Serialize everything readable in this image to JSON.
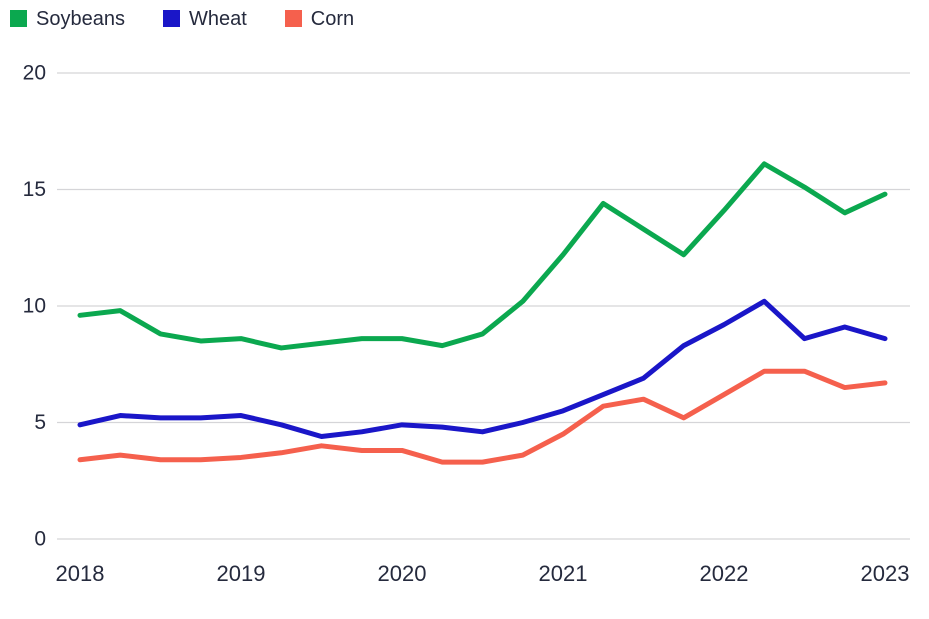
{
  "chart_data": {
    "type": "line",
    "title": "",
    "xlabel": "",
    "ylabel": "",
    "x": [
      2018,
      2018.25,
      2018.5,
      2018.75,
      2019,
      2019.25,
      2019.5,
      2019.75,
      2020,
      2020.25,
      2020.5,
      2020.75,
      2021,
      2021.25,
      2021.5,
      2021.75,
      2022,
      2022.25,
      2022.5,
      2022.75,
      2023
    ],
    "series": [
      {
        "name": "Soybeans",
        "color": "#0ba84f",
        "values": [
          9.6,
          9.8,
          8.8,
          8.5,
          8.6,
          8.2,
          8.4,
          8.6,
          8.6,
          8.3,
          8.8,
          10.2,
          12.2,
          14.4,
          13.3,
          12.2,
          14.1,
          16.1,
          15.1,
          14.0,
          14.8
        ]
      },
      {
        "name": "Wheat",
        "color": "#1a16c8",
        "values": [
          4.9,
          5.3,
          5.2,
          5.2,
          5.3,
          4.9,
          4.4,
          4.6,
          4.9,
          4.8,
          4.6,
          5.0,
          5.5,
          6.2,
          6.9,
          8.3,
          9.2,
          10.2,
          8.6,
          9.1,
          8.6
        ]
      },
      {
        "name": "Corn",
        "color": "#f5604d",
        "values": [
          3.4,
          3.6,
          3.4,
          3.4,
          3.5,
          3.7,
          4.0,
          3.8,
          3.8,
          3.3,
          3.3,
          3.6,
          4.5,
          5.7,
          6.0,
          5.2,
          6.2,
          7.2,
          7.2,
          6.5,
          6.7
        ]
      }
    ],
    "xlim": [
      2018,
      2023
    ],
    "ylim": [
      0,
      20
    ],
    "yticks": [
      0,
      5,
      10,
      15,
      20
    ],
    "ytick_labels": [
      "0",
      "5",
      "10",
      "15",
      "20"
    ],
    "xticks": [
      2018,
      2019,
      2020,
      2021,
      2022,
      2023
    ],
    "xtick_labels": [
      "2018",
      "2019",
      "2020",
      "2021",
      "2022",
      "2023"
    ],
    "grid": "horizontal",
    "legend_position": "top-left"
  },
  "style": {
    "background": "#ffffff",
    "grid_color": "#d5d5d8",
    "text_color": "#252a3d",
    "line_width": 5
  }
}
